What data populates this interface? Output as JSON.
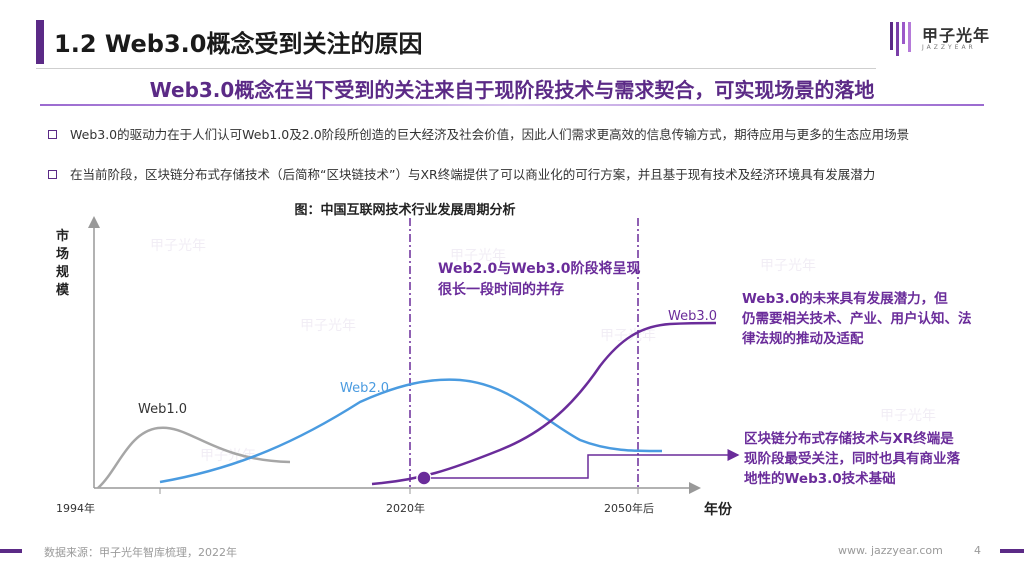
{
  "header": {
    "title": "1.2 Web3.0概念受到关注的原因",
    "logo_text": "甲子光年",
    "logo_sub": "JAZZYEAR"
  },
  "subtitle": "Web3.0概念在当下受到的关注来自于现阶段技术与需求契合，可实现场景的落地",
  "bullets": [
    "Web3.0的驱动力在于人们认可Web1.0及2.0阶段所创造的巨大经济及社会价值，因此人们需求更高效的信息传输方式，期待应用与更多的生态应用场景",
    "在当前阶段，区块链分布式存储技术（后简称“区块链技术”）与XR终端提供了可以商业化的可行方案，并且基于现有技术及经济环境具有发展潜力"
  ],
  "chart_data": {
    "type": "line",
    "title": "图：中国互联网技术行业发展周期分析",
    "ylabel": "市场规模",
    "xlabel": "年份",
    "x_ticks": [
      "1994年",
      "2020年",
      "2050年后"
    ],
    "series": [
      {
        "name": "Web1.0",
        "color": "#a6a6a6"
      },
      {
        "name": "Web2.0",
        "color": "#4a9be0"
      },
      {
        "name": "Web3.0",
        "color": "#6a2c9a"
      }
    ],
    "annotations": [
      "Web2.0与Web3.0阶段将呈现很长一段时间的并存",
      "Web3.0的未来具有发展潜力，但仍需要相关技术、产业、用户认知、法律法规的推动及适配",
      "区块链分布式存储技术与XR终端是现阶段最受关注，同时也具有商业落地性的Web3.0技术基础"
    ],
    "grid": false
  },
  "footer": {
    "source": "数据来源：甲子光年智库梳理，2022年",
    "website": "www. jazzyear.com",
    "page": "4"
  },
  "colors": {
    "accent": "#5b2a86",
    "web1": "#a6a6a6",
    "web2": "#4a9be0",
    "web3": "#6a2c9a"
  }
}
